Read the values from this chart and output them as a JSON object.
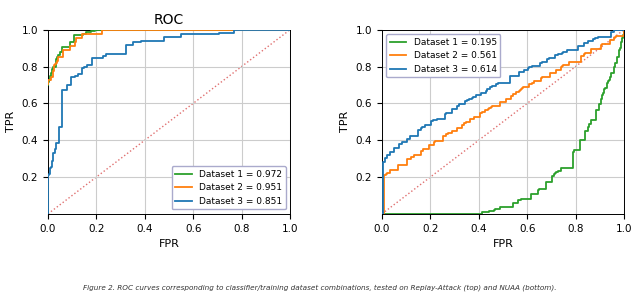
{
  "title_left": "ROC",
  "xlabel": "FPR",
  "ylabel": "TPR",
  "caption": "Figure 2. ROC curves corresponding to classifier/training dataset combinations, tested on Replay-Attack (top) and NUAA (bottom).",
  "plot1": {
    "legend": [
      "Dataset 1 = 0.972",
      "Dataset 2 = 0.951",
      "Dataset 3 = 0.851"
    ],
    "colors": [
      "#2ca02c",
      "#ff7f0e",
      "#1f77b4"
    ]
  },
  "plot2": {
    "legend": [
      "Dataset 1 = 0.195",
      "Dataset 2 = 0.561",
      "Dataset 3 = 0.614"
    ],
    "colors": [
      "#2ca02c",
      "#ff7f0e",
      "#1f77b4"
    ]
  },
  "diagonal_color": "#e07070",
  "xlim": [
    0.0,
    1.0
  ],
  "ylim": [
    0.0,
    1.0
  ],
  "xticks": [
    0.0,
    0.2,
    0.4,
    0.6,
    0.8,
    1.0
  ],
  "yticks": [
    0.2,
    0.4,
    0.6,
    0.8,
    1.0
  ],
  "grid_color": "#cccccc",
  "background_color": "#ffffff",
  "legend_loc_left": "lower right",
  "legend_loc_right": "upper left"
}
